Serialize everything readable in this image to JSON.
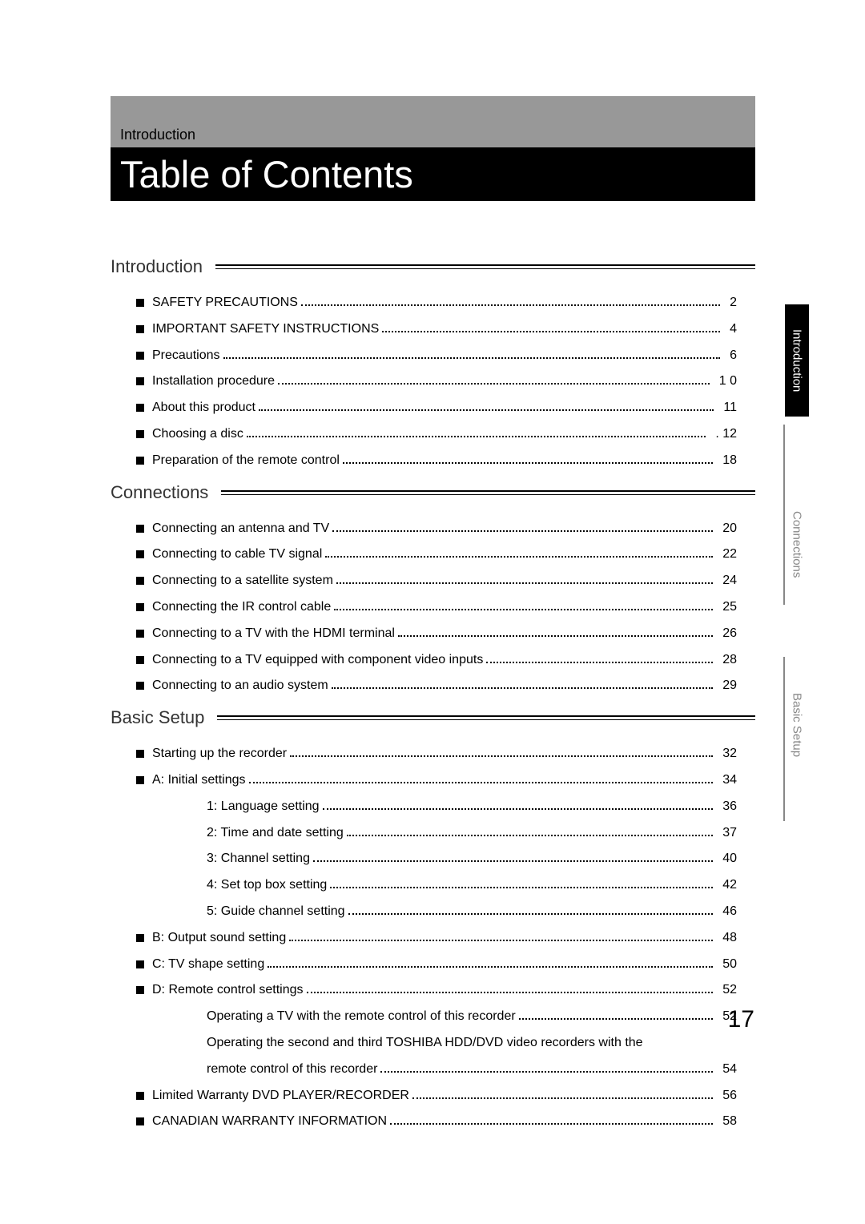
{
  "header_label": "Introduction",
  "title": "Table of Contents",
  "page_number": "17",
  "side_tabs": [
    {
      "label": "Introduction",
      "active": true
    },
    {
      "label": "Connections",
      "active": false
    },
    {
      "label": "Basic Setup",
      "active": false
    }
  ],
  "sections": [
    {
      "heading": "Introduction",
      "rows": [
        {
          "bullet": true,
          "indent": 0,
          "label": "SAFETY PRECAUTIONS",
          "page": "2"
        },
        {
          "bullet": true,
          "indent": 0,
          "label": "IMPORTANT SAFETY INSTRUCTIONS",
          "page": "4"
        },
        {
          "bullet": true,
          "indent": 0,
          "label": "Precautions",
          "page": "6"
        },
        {
          "bullet": true,
          "indent": 0,
          "label": "Installation procedure",
          "page": "1 0"
        },
        {
          "bullet": true,
          "indent": 0,
          "label": "About this product",
          "page": "11"
        },
        {
          "bullet": true,
          "indent": 0,
          "label": "Choosing a disc",
          "page": ". 12"
        },
        {
          "bullet": true,
          "indent": 0,
          "label": "Preparation of the remote control",
          "page": "18"
        }
      ]
    },
    {
      "heading": "Connections",
      "rows": [
        {
          "bullet": true,
          "indent": 0,
          "label": "Connecting an antenna and TV",
          "page": "20"
        },
        {
          "bullet": true,
          "indent": 0,
          "label": "Connecting to cable TV signal",
          "page": "22"
        },
        {
          "bullet": true,
          "indent": 0,
          "label": "Connecting to a satellite system",
          "page": "24"
        },
        {
          "bullet": true,
          "indent": 0,
          "label": "Connecting the IR control cable",
          "page": "25"
        },
        {
          "bullet": true,
          "indent": 0,
          "label": "Connecting to a TV with the HDMI terminal",
          "page": "26"
        },
        {
          "bullet": true,
          "indent": 0,
          "label": "Connecting to a TV equipped with component video inputs",
          "page": "28"
        },
        {
          "bullet": true,
          "indent": 0,
          "label": "Connecting to an audio system",
          "page": "29"
        }
      ]
    },
    {
      "heading": "Basic Setup",
      "rows": [
        {
          "bullet": true,
          "indent": 0,
          "label": "Starting up the recorder",
          "page": "32"
        },
        {
          "bullet": true,
          "indent": 0,
          "label": "A: Initial settings",
          "page": "34"
        },
        {
          "bullet": false,
          "indent": 1,
          "label": "1: Language setting",
          "page": "36"
        },
        {
          "bullet": false,
          "indent": 1,
          "label": "2: Time and date setting",
          "page": "37"
        },
        {
          "bullet": false,
          "indent": 1,
          "label": "3: Channel setting",
          "page": "40"
        },
        {
          "bullet": false,
          "indent": 1,
          "label": "4: Set top box setting",
          "page": "42"
        },
        {
          "bullet": false,
          "indent": 1,
          "label": "5: Guide channel setting",
          "page": "46"
        },
        {
          "bullet": true,
          "indent": 0,
          "label": "B: Output sound setting",
          "page": "48"
        },
        {
          "bullet": true,
          "indent": 0,
          "label": "C: TV shape setting",
          "page": "50"
        },
        {
          "bullet": true,
          "indent": 0,
          "label": "D: Remote control settings",
          "page": "52"
        },
        {
          "bullet": false,
          "indent": 1,
          "label": "Operating a TV with the remote control of this recorder",
          "page": "52"
        },
        {
          "bullet": false,
          "indent": 1,
          "label": "Operating the second and third TOSHIBA HDD/DVD video recorders with the",
          "continuation": "remote control of this recorder",
          "page": "54"
        },
        {
          "bullet": true,
          "indent": 0,
          "label": "Limited Warranty DVD PLAYER/RECORDER",
          "page": "56"
        },
        {
          "bullet": true,
          "indent": 0,
          "label": "CANADIAN WARRANTY INFORMATION",
          "page": "58"
        }
      ]
    }
  ]
}
